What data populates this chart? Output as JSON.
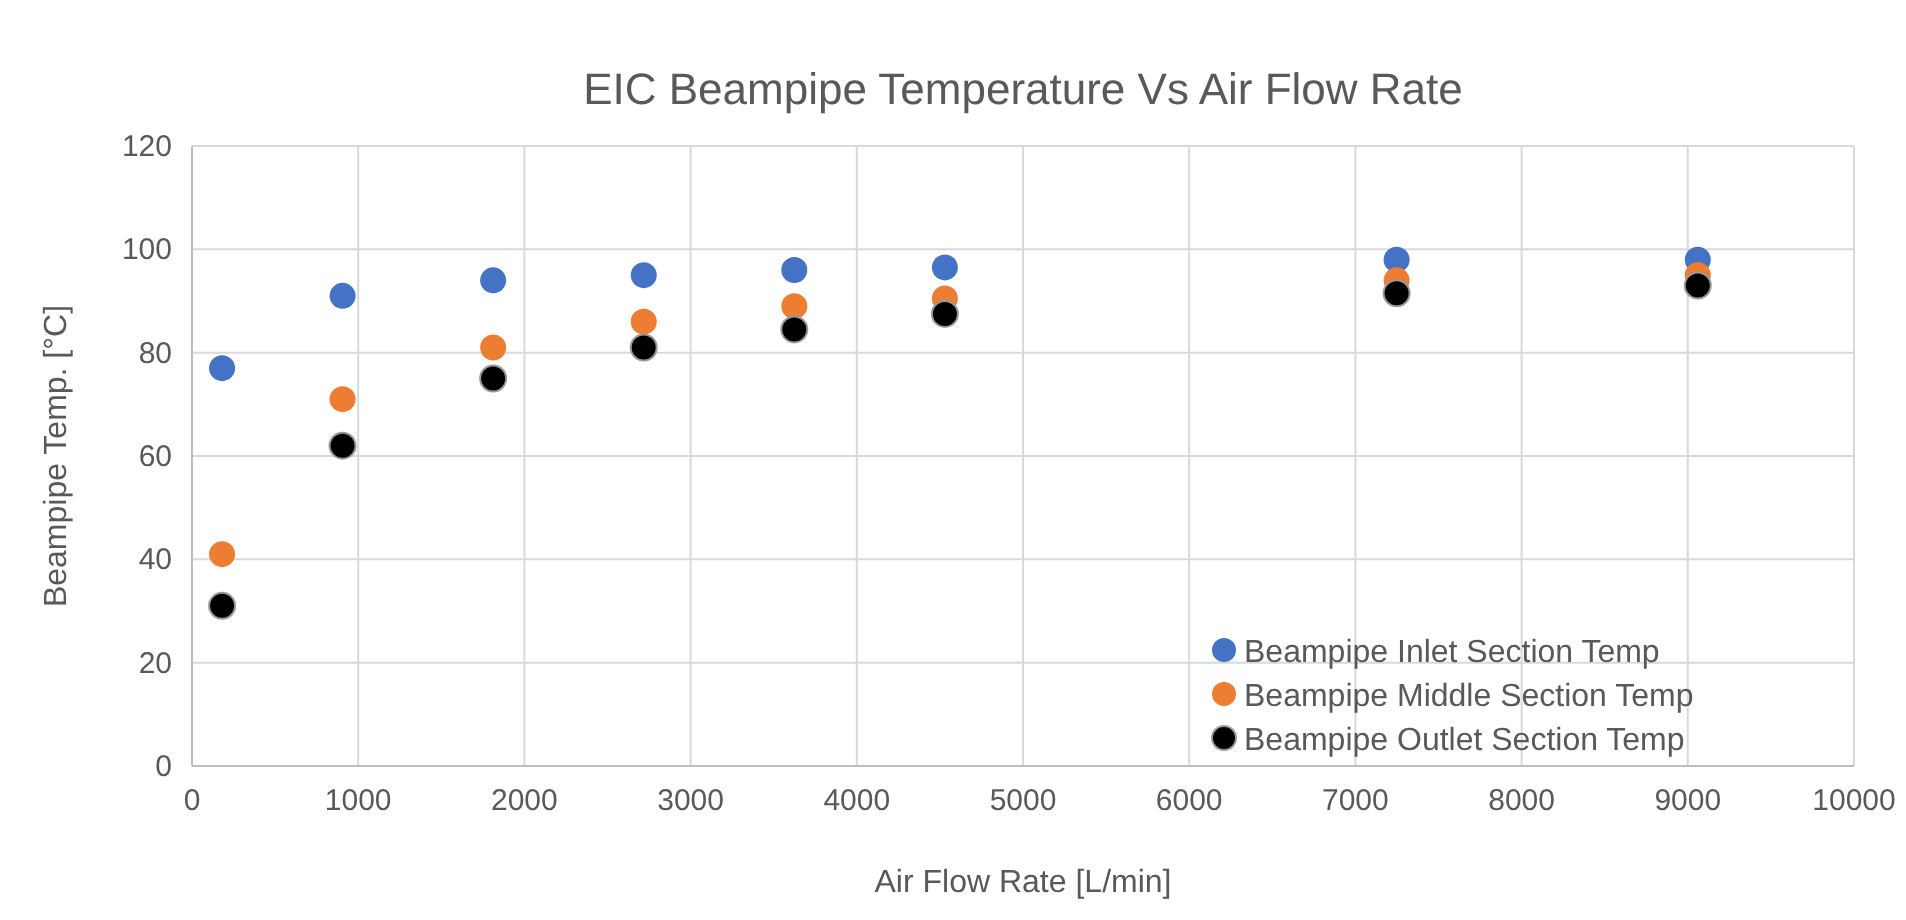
{
  "chart_data": {
    "type": "scatter",
    "title": "EIC Beampipe Temperature Vs Air Flow Rate",
    "xlabel": "Air Flow Rate [L/min]",
    "ylabel": "Beampipe Temp. [°C]",
    "x": [
      181,
      906,
      1812,
      2718,
      3624,
      4530,
      7248,
      9060
    ],
    "series": [
      {
        "name": "Beampipe Inlet Section Temp",
        "color": "#4472c4",
        "values": [
          77,
          91,
          94,
          95,
          96,
          96.5,
          98,
          98
        ]
      },
      {
        "name": "Beampipe Middle Section Temp",
        "color": "#ed7d31",
        "values": [
          41,
          71,
          81,
          86,
          89,
          90.5,
          94,
          95
        ]
      },
      {
        "name": "Beampipe Outlet Section Temp",
        "color": "#000000",
        "values": [
          31,
          62,
          75,
          81,
          84.5,
          87.5,
          91.5,
          93
        ]
      }
    ],
    "xlim": [
      0,
      10000
    ],
    "xticks": [
      0,
      1000,
      2000,
      3000,
      4000,
      5000,
      6000,
      7000,
      8000,
      9000,
      10000
    ],
    "ylim": [
      0,
      120
    ],
    "yticks": [
      0,
      20,
      40,
      60,
      80,
      100,
      120
    ],
    "grid": true,
    "legend": "bottom right",
    "marker": "circle"
  }
}
